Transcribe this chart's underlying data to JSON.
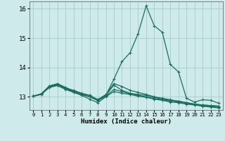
{
  "xlabel": "Humidex (Indice chaleur)",
  "xlim": [
    -0.5,
    23.5
  ],
  "ylim": [
    12.55,
    16.25
  ],
  "yticks": [
    13,
    14,
    15,
    16
  ],
  "xticks": [
    0,
    1,
    2,
    3,
    4,
    5,
    6,
    7,
    8,
    9,
    10,
    11,
    12,
    13,
    14,
    15,
    16,
    17,
    18,
    19,
    20,
    21,
    22,
    23
  ],
  "background_color": "#ceeaea",
  "grid_color": "#a8cccc",
  "line_color": "#1a6e60",
  "lines": [
    [
      13.02,
      13.1,
      13.37,
      13.42,
      13.3,
      13.22,
      13.12,
      13.05,
      12.9,
      13.05,
      13.6,
      14.2,
      14.5,
      15.15,
      16.1,
      15.42,
      15.2,
      14.1,
      13.85,
      12.95,
      12.82,
      12.9,
      12.88,
      12.78
    ],
    [
      13.02,
      13.1,
      13.37,
      13.45,
      13.32,
      13.2,
      13.1,
      13.05,
      12.9,
      13.08,
      13.45,
      13.35,
      13.22,
      13.15,
      13.08,
      13.0,
      12.95,
      12.9,
      12.85,
      12.8,
      12.75,
      12.72,
      12.7,
      12.68
    ],
    [
      13.02,
      13.1,
      13.35,
      13.42,
      13.3,
      13.18,
      13.1,
      13.0,
      12.88,
      13.05,
      13.4,
      13.22,
      13.12,
      13.08,
      13.05,
      12.98,
      12.92,
      12.88,
      12.85,
      12.8,
      12.75,
      12.72,
      12.7,
      12.68
    ],
    [
      13.02,
      13.08,
      13.33,
      13.4,
      13.27,
      13.17,
      13.07,
      13.0,
      12.87,
      13.02,
      13.25,
      13.18,
      13.1,
      13.05,
      13.0,
      12.94,
      12.9,
      12.85,
      12.82,
      12.77,
      12.73,
      12.69,
      12.67,
      12.64
    ],
    [
      13.02,
      13.08,
      13.32,
      13.38,
      13.25,
      13.15,
      13.05,
      12.92,
      12.8,
      13.0,
      13.18,
      13.12,
      13.08,
      13.02,
      12.98,
      12.92,
      12.88,
      12.82,
      12.8,
      12.75,
      12.72,
      12.68,
      12.65,
      12.62
    ]
  ]
}
